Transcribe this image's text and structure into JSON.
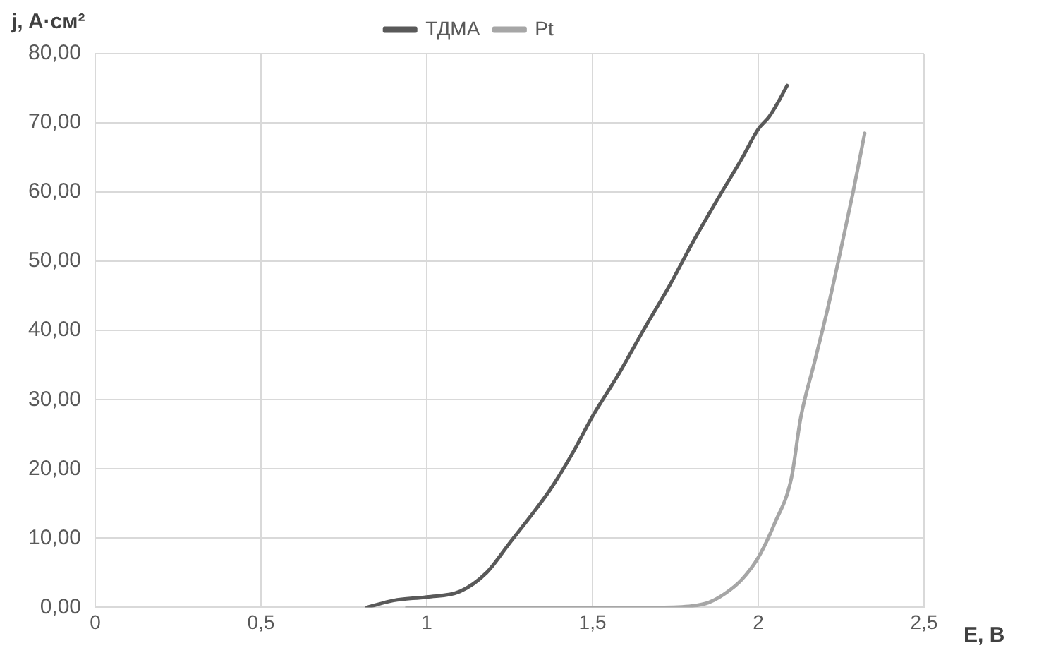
{
  "chart_data": {
    "type": "line",
    "xlabel": "E, B",
    "ylabel": "j, A·см²",
    "legend": "top",
    "grid": true,
    "marker": "none",
    "line_style": "solid",
    "xlim": [
      0,
      2.5
    ],
    "xticks": [
      0,
      {
        "value": 0.5,
        "label": "0,5"
      },
      1,
      {
        "value": 1.5,
        "label": "1,5"
      },
      2,
      {
        "value": 2.5,
        "label": "2,5"
      }
    ],
    "ylim": [
      0,
      80
    ],
    "yticks": [
      {
        "value": 0,
        "label": "0,00"
      },
      {
        "value": 10,
        "label": "10,00"
      },
      {
        "value": 20,
        "label": "20,00"
      },
      {
        "value": 30,
        "label": "30,00"
      },
      {
        "value": 40,
        "label": "40,00"
      },
      {
        "value": 50,
        "label": "50,00"
      },
      {
        "value": 60,
        "label": "60,00"
      },
      {
        "value": 70,
        "label": "70,00"
      },
      {
        "value": 80,
        "label": "80,00"
      }
    ],
    "series": [
      {
        "name": "ТДМА",
        "color": "#595959",
        "x": [
          0.82,
          0.9,
          1.0,
          1.1,
          1.18,
          1.25,
          1.32,
          1.375,
          1.44,
          1.5,
          1.58,
          1.653,
          1.73,
          1.803,
          1.88,
          1.95,
          2.0,
          2.033,
          2.06,
          2.087
        ],
        "values": [
          0,
          1.0,
          1.5,
          2.3,
          5,
          9.3,
          13.6,
          17.2,
          22.3,
          27.6,
          33.8,
          40,
          46.3,
          52.8,
          59.2,
          64.8,
          69.1,
          70.9,
          73,
          75.4
        ]
      },
      {
        "name": "Pt",
        "color": "#a6a6a6",
        "x": [
          0.94,
          1.2,
          1.5,
          1.7,
          1.8,
          1.85,
          1.9,
          1.95,
          2.0,
          2.05,
          2.1,
          2.128,
          2.17,
          2.21,
          2.244,
          2.286,
          2.321
        ],
        "values": [
          0,
          0,
          0,
          0,
          0.2,
          0.7,
          2.0,
          4.0,
          7.2,
          12.2,
          18.7,
          27.4,
          35.5,
          43.3,
          50.6,
          60,
          68.5
        ]
      }
    ]
  }
}
